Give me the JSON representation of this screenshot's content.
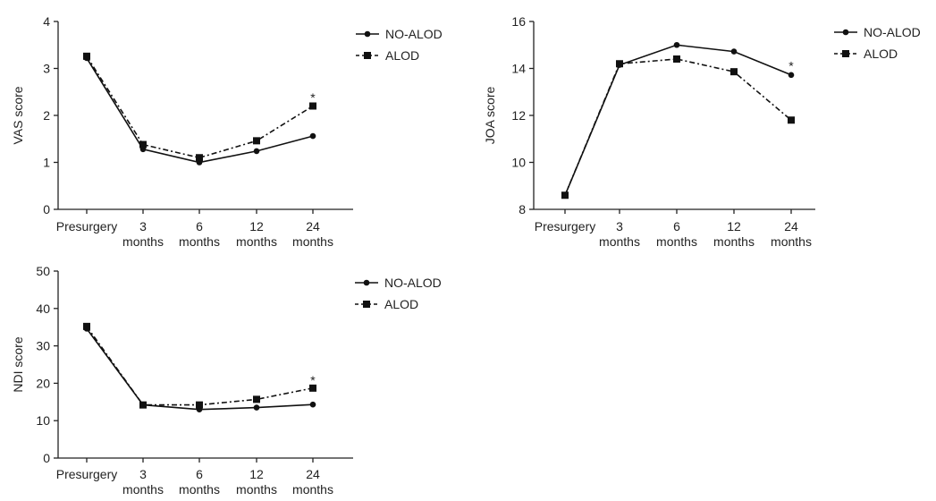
{
  "chart_data": [
    {
      "type": "line",
      "ylabel": "VAS score",
      "xlabel": "",
      "ylim": [
        0,
        4
      ],
      "y_ticks": [
        "0",
        "1",
        "2",
        "3",
        "4"
      ],
      "categories": [
        {
          "line1": "Presurgery",
          "line2": ""
        },
        {
          "line1": "3",
          "line2": "months"
        },
        {
          "line1": "6",
          "line2": "months"
        },
        {
          "line1": "12",
          "line2": "months"
        },
        {
          "line1": "24",
          "line2": "months"
        }
      ],
      "series": [
        {
          "name": "NO-ALOD",
          "values": [
            3.22,
            1.28,
            1.0,
            1.24,
            1.56
          ],
          "style": "solid",
          "marker": "circle",
          "color": "#111111"
        },
        {
          "name": "ALOD",
          "values": [
            3.26,
            1.38,
            1.1,
            1.46,
            2.2
          ],
          "style": "dashed",
          "marker": "square",
          "color": "#111111"
        }
      ],
      "annotations": [
        {
          "text": "*",
          "category_index": 4,
          "y": 2.38
        }
      ]
    },
    {
      "type": "line",
      "ylabel": "JOA score",
      "xlabel": "",
      "ylim": [
        8,
        16
      ],
      "y_ticks": [
        "8",
        "10",
        "12",
        "14",
        "16"
      ],
      "categories": [
        {
          "line1": "Presurgery",
          "line2": ""
        },
        {
          "line1": "3",
          "line2": "months"
        },
        {
          "line1": "6",
          "line2": "months"
        },
        {
          "line1": "12",
          "line2": "months"
        },
        {
          "line1": "24",
          "line2": "months"
        }
      ],
      "series": [
        {
          "name": "NO-ALOD",
          "values": [
            8.6,
            14.15,
            15.0,
            14.72,
            13.72
          ],
          "style": "solid",
          "marker": "circle",
          "color": "#111111"
        },
        {
          "name": "ALOD",
          "values": [
            8.6,
            14.2,
            14.4,
            13.86,
            11.8
          ],
          "style": "dashed",
          "marker": "square",
          "color": "#111111"
        }
      ],
      "annotations": [
        {
          "text": "*",
          "category_index": 4,
          "y": 14.12
        }
      ]
    },
    {
      "type": "line",
      "ylabel": "NDI score",
      "xlabel": "",
      "ylim": [
        0,
        50
      ],
      "y_ticks": [
        "0",
        "10",
        "20",
        "30",
        "40",
        "50"
      ],
      "categories": [
        {
          "line1": "Presurgery",
          "line2": ""
        },
        {
          "line1": "3",
          "line2": "months"
        },
        {
          "line1": "6",
          "line2": "months"
        },
        {
          "line1": "12",
          "line2": "months"
        },
        {
          "line1": "24",
          "line2": "months"
        }
      ],
      "series": [
        {
          "name": "NO-ALOD",
          "values": [
            34.6,
            14.2,
            13.0,
            13.5,
            14.3
          ],
          "style": "solid",
          "marker": "circle",
          "color": "#111111"
        },
        {
          "name": "ALOD",
          "values": [
            35.2,
            14.2,
            14.2,
            15.7,
            18.7
          ],
          "style": "dashed",
          "marker": "square",
          "color": "#111111"
        }
      ],
      "annotations": [
        {
          "text": "*",
          "category_index": 4,
          "y": 20.8
        }
      ]
    }
  ]
}
